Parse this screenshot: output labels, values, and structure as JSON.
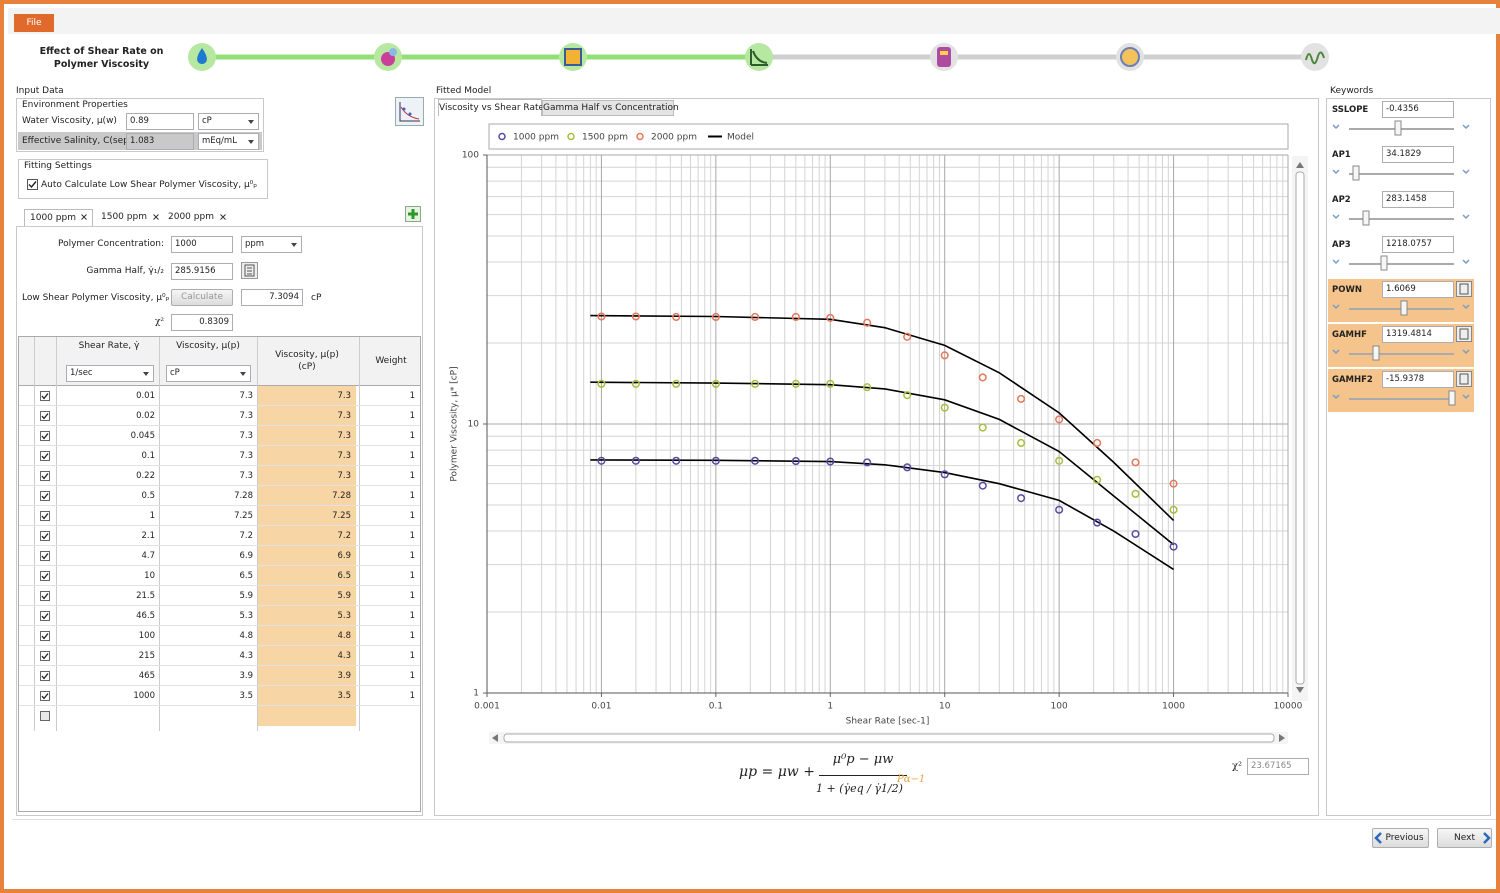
{
  "menu": {
    "file": "File"
  },
  "header": {
    "title": "Effect of Shear Rate on Polymer Viscosity"
  },
  "input_data": {
    "title": "Input Data",
    "environment": {
      "title": "Environment Properties",
      "fields": [
        {
          "label": "Water Viscosity, μ(w)",
          "value": "0.89",
          "unit": "cP"
        },
        {
          "label": "Effective Salinity, C(sep)",
          "value": "1.083",
          "unit": "mEq/mL"
        }
      ]
    },
    "fitting": {
      "title": "Fitting Settings",
      "auto_calc": "Auto Calculate Low Shear Polymer Viscosity, μ⁰ₚ"
    },
    "tabs": [
      "1000 ppm",
      "1500 ppm",
      "2000 ppm"
    ],
    "concentration": {
      "label": "Polymer Concentration:",
      "value": "1000",
      "unit": "ppm"
    },
    "gamma_half": {
      "label": "Gamma Half, γ̇₁/₂",
      "value": "285.9156"
    },
    "low_shear": {
      "label": "Low Shear Polymer Viscosity, μ⁰ₚ",
      "button": "Calculate",
      "value": "7.3094",
      "unit": "cP"
    },
    "chi2": {
      "label": "χ²",
      "value": "0.8309"
    },
    "table": {
      "headers": [
        "Shear Rate, γ̇",
        "Viscosity, μ(p)",
        "Viscosity, μ(p) (cP)",
        "Weight"
      ],
      "units": [
        "1/sec",
        "cP"
      ],
      "rows": [
        [
          0.01,
          7.3,
          7.3,
          1
        ],
        [
          0.02,
          7.3,
          7.3,
          1
        ],
        [
          0.045,
          7.3,
          7.3,
          1
        ],
        [
          0.1,
          7.3,
          7.3,
          1
        ],
        [
          0.22,
          7.3,
          7.3,
          1
        ],
        [
          0.5,
          7.28,
          7.28,
          1
        ],
        [
          1,
          7.25,
          7.25,
          1
        ],
        [
          2.1,
          7.2,
          7.2,
          1
        ],
        [
          4.7,
          6.9,
          6.9,
          1
        ],
        [
          10,
          6.5,
          6.5,
          1
        ],
        [
          21.5,
          5.9,
          5.9,
          1
        ],
        [
          46.5,
          5.3,
          5.3,
          1
        ],
        [
          100,
          4.8,
          4.8,
          1
        ],
        [
          215,
          4.3,
          4.3,
          1
        ],
        [
          465,
          3.9,
          3.9,
          1
        ],
        [
          1000,
          3.5,
          3.5,
          1
        ]
      ]
    }
  },
  "fitted_model": {
    "title": "Fitted Model",
    "tabs": [
      "Viscosity vs Shear Rate",
      "Gamma Half vs Concentration"
    ],
    "formula": {
      "lhs": "μp = μw +",
      "numerator": "μ⁰p − μw",
      "denominator": "1 + (γ̇eq / γ̇1/2)",
      "exponent": "Pα−1"
    },
    "chi2": {
      "label": "χ²",
      "value": "23.67165"
    }
  },
  "chart_data": {
    "type": "scatter",
    "xlabel": "Shear Rate [sec-1]",
    "ylabel": "Polymer Viscosity, μ* [cP]",
    "xscale": "log",
    "yscale": "log",
    "grid": true,
    "xlim": [
      0.001,
      10000
    ],
    "xticks": [
      0.001,
      0.01,
      0.1,
      1,
      10,
      100,
      1000,
      10000
    ],
    "ylim": [
      1,
      100
    ],
    "yticks": [
      1,
      10,
      100
    ],
    "x": [
      0.01,
      0.02,
      0.045,
      0.1,
      0.22,
      0.5,
      1,
      2.1,
      4.7,
      10,
      21.5,
      46.5,
      100,
      215,
      465,
      1000
    ],
    "series": [
      {
        "name": "1000 ppm",
        "color": "#5a4aa0",
        "values": [
          7.3,
          7.3,
          7.3,
          7.3,
          7.3,
          7.28,
          7.25,
          7.2,
          6.9,
          6.5,
          5.9,
          5.3,
          4.8,
          4.3,
          3.9,
          3.5
        ]
      },
      {
        "name": "1500 ppm",
        "color": "#a6bf3c",
        "values": [
          14.1,
          14.1,
          14.1,
          14.1,
          14.1,
          14.1,
          14.1,
          13.7,
          12.8,
          11.5,
          9.7,
          8.5,
          7.3,
          6.2,
          5.5,
          4.8
        ]
      },
      {
        "name": "2000 ppm",
        "color": "#e6775a",
        "values": [
          25.1,
          25.1,
          25,
          25,
          25,
          25,
          24.8,
          23.8,
          21.1,
          18,
          14.9,
          12.4,
          10.4,
          8.5,
          7.2,
          6
        ]
      }
    ],
    "model": {
      "name": "Model",
      "color": "#000000",
      "x": [
        0.008,
        0.1,
        1,
        3,
        10,
        30,
        100,
        300,
        1000
      ],
      "curves": [
        [
          7.35,
          7.33,
          7.25,
          7.05,
          6.6,
          6,
          5.2,
          4,
          2.88
        ],
        [
          14.3,
          14.2,
          14,
          13.5,
          12.3,
          10.4,
          7.9,
          5.4,
          3.56
        ],
        [
          25.3,
          25.1,
          24.5,
          22.8,
          19.6,
          15.5,
          11,
          7.2,
          4.38
        ]
      ]
    }
  },
  "keywords": {
    "title": "Keywords",
    "items": [
      {
        "name": "SSLOPE",
        "value": "-0.4356"
      },
      {
        "name": "AP1",
        "value": "34.1829"
      },
      {
        "name": "AP2",
        "value": "283.1458"
      },
      {
        "name": "AP3",
        "value": "1218.0757"
      },
      {
        "name": "POWN",
        "value": "1.6069",
        "highlighted": true
      },
      {
        "name": "GAMHF",
        "value": "1319.4814",
        "highlighted": true
      },
      {
        "name": "GAMHF2",
        "value": "-15.9378",
        "highlighted": true
      }
    ]
  },
  "nav": {
    "previous": "Previous",
    "next": "Next"
  }
}
